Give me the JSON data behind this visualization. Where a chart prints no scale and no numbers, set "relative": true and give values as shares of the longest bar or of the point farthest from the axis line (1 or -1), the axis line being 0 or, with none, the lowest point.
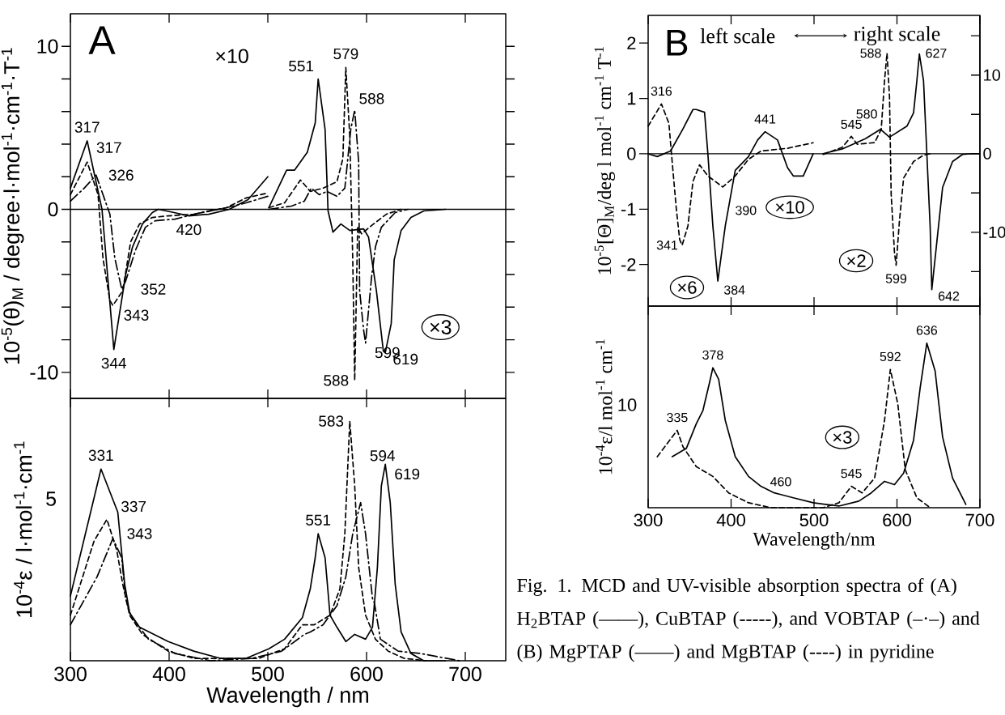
{
  "chart_data": [
    {
      "type": "line",
      "ylabel": "10$^{-5}$(θ)$_{M}$ / degree·l·mol$^{-1}$·cm$^{-1}$·T$^{-1}$",
      "xlim": [
        300,
        741
      ],
      "xticks": [
        300,
        400,
        500,
        600,
        700
      ],
      "ylim": [
        -11.6,
        12
      ],
      "yticks": [
        {
          "value": -10,
          "label": "-10"
        },
        {
          "value": -8,
          "label": null
        },
        {
          "value": -6,
          "label": null
        },
        {
          "value": -4,
          "label": null
        },
        {
          "value": -2,
          "label": null
        },
        0,
        {
          "value": 2,
          "label": null
        },
        {
          "value": 4,
          "label": null
        },
        {
          "value": 6,
          "label": null
        },
        {
          "value": 8,
          "label": null
        },
        10
      ],
      "tick_labels": "y",
      "ref_lines": [
        {
          "axis": "y",
          "value": 0
        }
      ],
      "series": [
        {
          "color": "#000000",
          "line_style": "solid",
          "x": [
            300,
            317,
            332,
            344,
            356,
            363,
            373,
            383,
            389,
            405,
            420,
            440,
            461,
            480,
            500
          ],
          "values": [
            1.3,
            4.2,
            0,
            -8.6,
            -4.0,
            -2.3,
            -0.9,
            -0.2,
            0,
            -0.2,
            -0.4,
            -0.3,
            0,
            0.6,
            2.0
          ]
        },
        {
          "color": "#000000",
          "line_style": "solid",
          "x": [
            501,
            519,
            527,
            540,
            548,
            551,
            558,
            561,
            566,
            574,
            583,
            597,
            602,
            610,
            617,
            619,
            625,
            628,
            635,
            645,
            658,
            680
          ],
          "values": [
            0.1,
            2.4,
            2.4,
            3.5,
            5.3,
            8.0,
            4.9,
            -0.1,
            -1.4,
            -0.9,
            -1.3,
            -1.2,
            -1.7,
            -5.0,
            -8.7,
            -8.8,
            -7.0,
            -3.1,
            -1.3,
            -0.5,
            -0.1,
            0
          ]
        },
        {
          "color": "#000000",
          "line_style": "dashed",
          "x": [
            300,
            317,
            328,
            333,
            340,
            343,
            353,
            361,
            370,
            383,
            399,
            425,
            458,
            478,
            500
          ],
          "values": [
            0.9,
            2.9,
            0.9,
            -3.0,
            -5.6,
            -5.9,
            -5.0,
            -2.0,
            -0.9,
            -0.5,
            -0.4,
            -0.3,
            0.1,
            0.7,
            1.0
          ]
        },
        {
          "color": "#000000",
          "line_style": "dashed",
          "x": [
            501,
            517,
            533,
            543,
            556,
            570,
            576,
            579,
            583,
            586,
            588,
            591,
            595,
            605,
            620,
            635
          ],
          "values": [
            0.1,
            0.4,
            1.8,
            1.1,
            1.3,
            1.7,
            3.1,
            8.7,
            4.5,
            -3.0,
            -10.5,
            -1.1,
            -1.5,
            -1.0,
            -0.3,
            0
          ]
        },
        {
          "color": "#000000",
          "line_style": "dashdot",
          "x": [
            300,
            314,
            326,
            333,
            340,
            345,
            352,
            356,
            366,
            376,
            386,
            406,
            432,
            458,
            478,
            500
          ],
          "values": [
            0.5,
            1.3,
            2.1,
            0.9,
            -0.3,
            -3.0,
            -4.9,
            -4.4,
            -2.5,
            -1.1,
            -0.7,
            -0.6,
            -0.2,
            0.1,
            0.4,
            0.8
          ]
        },
        {
          "color": "#000000",
          "line_style": "dashdot",
          "x": [
            501,
            524,
            537,
            544,
            552,
            560,
            570,
            578,
            584,
            588,
            592,
            593,
            597,
            599,
            605,
            609,
            615,
            629,
            642
          ],
          "values": [
            0,
            0.2,
            0.5,
            1.3,
            0.9,
            1.1,
            0.8,
            1.3,
            4.9,
            6.1,
            2.9,
            -5.0,
            -7.4,
            -8.2,
            -4.2,
            -2.3,
            -1.1,
            -0.2,
            0
          ]
        }
      ],
      "annotations": [
        {
          "text": "317",
          "x": 317,
          "y": 4.2
        },
        {
          "text": "317",
          "x": 317,
          "y": 2.9
        },
        {
          "text": "326",
          "x": 326,
          "y": 2.1
        },
        {
          "text": "352",
          "x": 352,
          "y": -4.9
        },
        {
          "text": "343",
          "x": 343,
          "y": -5.9
        },
        {
          "text": "344",
          "x": 344,
          "y": -8.6
        },
        {
          "text": "420",
          "x": 420,
          "y": -0.4
        },
        {
          "text": "551",
          "x": 551,
          "y": 8.0
        },
        {
          "text": "579",
          "x": 579,
          "y": 8.7
        },
        {
          "text": "588",
          "x": 588,
          "y": 6.1
        },
        {
          "text": "588",
          "x": 588,
          "y": -10.5
        },
        {
          "text": "599",
          "x": 599,
          "y": -8.2
        },
        {
          "text": "619",
          "x": 619,
          "y": -8.8
        },
        "A",
        "×10",
        "×3"
      ]
    },
    {
      "type": "line",
      "relative": true,
      "xlabel": "Wavelength / nm",
      "ylabel": "10$^{-4}$ε / l·mol$^{-1}$·cm$^{-1}$",
      "xlim": [
        300,
        741
      ],
      "xticks": [
        300,
        400,
        500,
        600,
        700
      ],
      "series": [
        {
          "color": "#000000",
          "line_style": "solid",
          "x": [
            300,
            331,
            348,
            355,
            360,
            370,
            399,
            425,
            452,
            478,
            501,
            517,
            535,
            543,
            548,
            551,
            558,
            563,
            570,
            579,
            588,
            599,
            606,
            611,
            615,
            619,
            624,
            629,
            635,
            645,
            658,
            680
          ],
          "values": [
            0.27,
            0.8,
            0.62,
            0.32,
            0.2,
            0.14,
            0.08,
            0.04,
            0.01,
            0.01,
            0.05,
            0.09,
            0.18,
            0.3,
            0.43,
            0.53,
            0.43,
            0.19,
            0.14,
            0.08,
            0.11,
            0.09,
            0.14,
            0.39,
            0.73,
            0.82,
            0.66,
            0.32,
            0.12,
            0.03,
            0,
            0
          ]
        },
        {
          "color": "#000000",
          "line_style": "dashed",
          "x": [
            300,
            324,
            337,
            347,
            353,
            360,
            373,
            399,
            425,
            458,
            491,
            517,
            535,
            547,
            563,
            573,
            578,
            583,
            588,
            592,
            599,
            609,
            622,
            638,
            660
          ],
          "values": [
            0.19,
            0.5,
            0.59,
            0.46,
            0.32,
            0.19,
            0.11,
            0.04,
            0.01,
            0.01,
            0.01,
            0.05,
            0.15,
            0.15,
            0.19,
            0.3,
            0.53,
            1,
            0.73,
            0.39,
            0.19,
            0.09,
            0.04,
            0.01,
            0
          ]
        },
        {
          "color": "#000000",
          "line_style": "dashdot",
          "x": [
            300,
            327,
            343,
            352,
            356,
            361,
            379,
            406,
            442,
            484,
            514,
            537,
            543,
            556,
            570,
            579,
            586,
            594,
            599,
            606,
            608,
            614,
            632,
            655,
            694
          ],
          "values": [
            0.15,
            0.35,
            0.51,
            0.43,
            0.26,
            0.19,
            0.09,
            0.03,
            0,
            0.01,
            0.04,
            0.11,
            0.12,
            0.15,
            0.23,
            0.35,
            0.53,
            0.66,
            0.53,
            0.26,
            0.24,
            0.09,
            0.04,
            0.03,
            0
          ]
        }
      ],
      "annotations": [
        {
          "text": "331",
          "x": 331,
          "y": 0.8
        },
        {
          "text": "337",
          "x": 337,
          "y": 0.59
        },
        {
          "text": "343",
          "x": 343,
          "y": 0.51
        },
        {
          "text": "551",
          "x": 551,
          "y": 0.53
        },
        {
          "text": "583",
          "x": 583,
          "y": 1
        },
        {
          "text": "594",
          "x": 594,
          "y": 0.66
        },
        {
          "text": "619",
          "x": 619,
          "y": 0.82
        },
        "5"
      ]
    },
    {
      "type": "line",
      "ylabel": "10$^{-5}$[Θ]$_{M}$/deg l mol$^{-1}$ cm$^{-1}$ T$^{-1}$",
      "xlim": [
        300,
        700
      ],
      "xticks": [
        300,
        400,
        500,
        600,
        700
      ],
      "ylim": [
        -2.75,
        2.5
      ],
      "yticks": [
        -2,
        -1,
        0,
        1,
        2
      ],
      "y2lim": [
        -19.4,
        17.6
      ],
      "y2ticks": [
        {
          "value": -15,
          "label": null
        },
        -10,
        {
          "value": -5,
          "label": null
        },
        0,
        {
          "value": 5,
          "label": null
        },
        10,
        {
          "value": 15,
          "label": null
        }
      ],
      "tick_labels": "y",
      "ref_lines": [
        {
          "axis": "y",
          "value": 0
        }
      ],
      "series": [
        {
          "color": "#000000",
          "line_style": "solid",
          "x": [
            300,
            311,
            327,
            342,
            354,
            358,
            368,
            372,
            378,
            384,
            393,
            405,
            421,
            432,
            441,
            456,
            468,
            475,
            487,
            499
          ],
          "values": [
            0,
            -0.05,
            0.05,
            0.45,
            0.8,
            0.8,
            0.75,
            0,
            -1.3,
            -2.3,
            -1.3,
            -0.3,
            -0.05,
            0.25,
            0.4,
            0.25,
            -0.25,
            -0.4,
            -0.4,
            0
          ]
        },
        {
          "color": "#000000",
          "line_style": "dashed",
          "x": [
            300,
            316,
            325,
            329,
            334,
            338,
            341,
            348,
            354,
            362,
            372,
            390,
            405,
            421,
            436,
            468,
            499
          ],
          "values": [
            0.5,
            0.9,
            0.55,
            -0.15,
            -1.0,
            -1.55,
            -1.65,
            -1.3,
            -0.5,
            -0.2,
            -0.4,
            -0.6,
            -0.4,
            -0.1,
            0.05,
            0.1,
            0.2
          ]
        },
        {
          "color": "#000000",
          "line_style": "solid",
          "axis": "y2",
          "x": [
            511,
            534,
            562,
            580,
            591,
            612,
            620,
            624,
            627,
            632,
            636,
            640,
            642,
            648,
            655,
            667,
            679,
            691,
            700
          ],
          "values": [
            0,
            0.6,
            1.9,
            3.1,
            2.1,
            3.5,
            5.2,
            9.3,
            12.7,
            9.3,
            0,
            -9.3,
            -17.3,
            -11.3,
            -4.3,
            -1.0,
            -0.1,
            0,
            0
          ]
        },
        {
          "color": "#000000",
          "line_style": "dashed",
          "axis": "y2",
          "x": [
            511,
            534,
            545,
            552,
            573,
            581,
            585,
            588,
            591,
            593,
            597,
            599,
            603,
            608,
            620,
            632,
            640
          ],
          "values": [
            -0.1,
            0.8,
            2.2,
            1.2,
            1.4,
            3.1,
            9.3,
            12.8,
            7.2,
            -5.2,
            -12.6,
            -14.2,
            -8.5,
            -3.1,
            -1.0,
            -0.2,
            0
          ]
        }
      ],
      "annotations": [
        "B",
        "left scale",
        "right scale",
        {
          "text": "316",
          "x": 316,
          "y": 0.9
        },
        {
          "text": "341",
          "x": 341,
          "y": -1.65
        },
        {
          "text": "384",
          "x": 384,
          "y": -2.3
        },
        {
          "text": "390",
          "x": 390,
          "y": -0.6
        },
        {
          "text": "441",
          "x": 441,
          "y": 0.4
        },
        "×10",
        "×6",
        "545",
        "580",
        "588",
        "627",
        "599",
        "642",
        "×2"
      ]
    },
    {
      "type": "line",
      "relative": true,
      "xlabel": "Wavelength/nm",
      "ylabel": "10$^{-4}$ε/l mol$^{-1}$ cm$^{-1}$",
      "xlim": [
        300,
        700
      ],
      "xticks": [
        300,
        400,
        500,
        600,
        700
      ],
      "series": [
        {
          "color": "#000000",
          "line_style": "solid",
          "x": [
            329,
            346,
            358,
            366,
            374,
            378,
            385,
            393,
            405,
            421,
            436,
            452,
            460,
            475,
            499,
            530,
            554,
            569,
            585,
            597,
            608,
            620,
            628,
            636,
            646,
            655,
            667,
            683
          ],
          "values": [
            0.31,
            0.36,
            0.51,
            0.59,
            0.76,
            0.85,
            0.78,
            0.53,
            0.31,
            0.19,
            0.13,
            0.09,
            0.08,
            0.06,
            0.03,
            0.01,
            0.04,
            0.09,
            0.16,
            0.14,
            0.21,
            0.41,
            0.73,
            1,
            0.83,
            0.43,
            0.18,
            0.02
          ]
        },
        {
          "color": "#000000",
          "line_style": "dashed",
          "x": [
            311,
            335,
            342,
            358,
            378,
            397,
            421,
            448,
            511,
            530,
            545,
            558,
            573,
            585,
            592,
            601,
            610,
            624,
            640
          ],
          "values": [
            0.31,
            0.47,
            0.37,
            0.25,
            0.19,
            0.09,
            0.03,
            0,
            0,
            0.03,
            0.13,
            0.09,
            0.18,
            0.53,
            0.84,
            0.63,
            0.23,
            0.06,
            0
          ]
        }
      ],
      "annotations": [
        {
          "text": "335",
          "x": 335,
          "y": 0.47
        },
        {
          "text": "378",
          "x": 378,
          "y": 0.85
        },
        {
          "text": "460",
          "x": 460,
          "y": 0.08
        },
        {
          "text": "545",
          "x": 545,
          "y": 0.13
        },
        {
          "text": "592",
          "x": 592,
          "y": 0.84
        },
        {
          "text": "636",
          "x": 636,
          "y": 1
        },
        "×3",
        "Fig. 1.  MCD and UV-visible absorption spectra of (A) H$_{2}$BTAP (——), CuBTAP (-----), and VOBTAP (–·–) and (B) MgPTAP (——) and MgBTAP (----) in pyridine",
        "10"
      ]
    }
  ]
}
